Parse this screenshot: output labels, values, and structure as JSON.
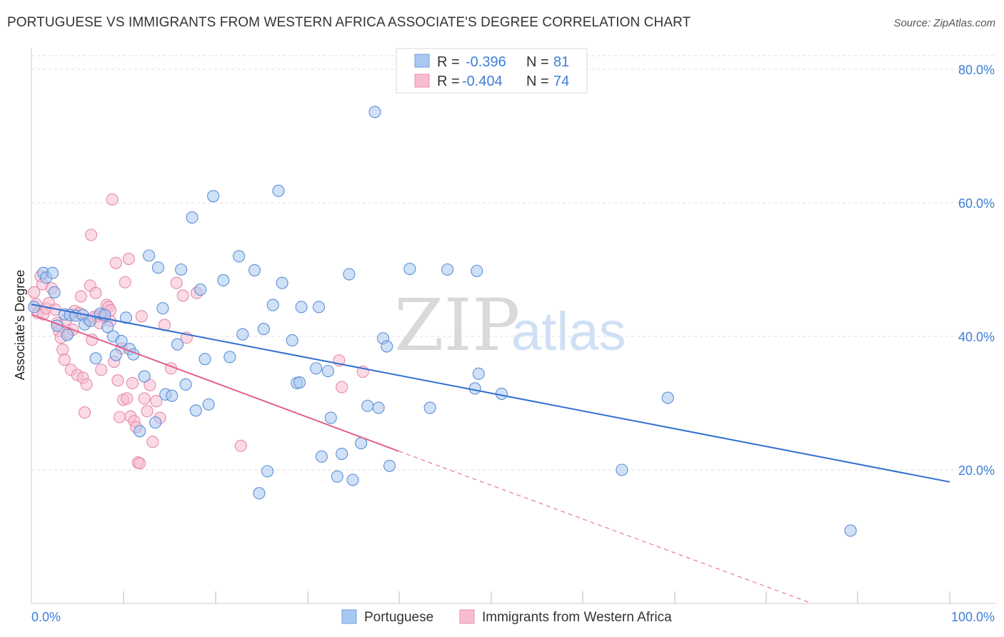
{
  "title": "PORTUGUESE VS IMMIGRANTS FROM WESTERN AFRICA ASSOCIATE'S DEGREE CORRELATION CHART",
  "source": "Source: ZipAtlas.com",
  "watermark": {
    "zip": "ZIP",
    "atlas": "atlas"
  },
  "legend": {
    "r_label": "R =",
    "n_label": "N =",
    "rows": [
      {
        "r": "-0.396",
        "n": "81",
        "fill": "#a9c8f0",
        "stroke": "#6f9fdc"
      },
      {
        "r": "-0.404",
        "n": "74",
        "fill": "#f7bcd0",
        "stroke": "#e891ad"
      }
    ]
  },
  "bottom_legend": [
    "Portuguese",
    "Immigrants from Western Africa"
  ],
  "colors": {
    "blue_fill": "#a9c8f0",
    "blue_stroke": "#5b8fd6",
    "blue_line": "#2f6fd0",
    "pink_fill": "#f7bcd0",
    "pink_stroke": "#e58aa9",
    "pink_line": "#e0608e",
    "value_text": "#3f7fd9",
    "grid": "#dddddd"
  },
  "chart_data": {
    "type": "scatter",
    "title": "PORTUGUESE VS IMMIGRANTS FROM WESTERN AFRICA ASSOCIATE'S DEGREE CORRELATION CHART",
    "xlabel": "",
    "ylabel": "Associate's Degree",
    "xlim": [
      0,
      100
    ],
    "ylim": [
      0,
      80
    ],
    "x_tick_labels": [
      "0.0%",
      "100.0%"
    ],
    "y_ticks": [
      20,
      40,
      60,
      80
    ],
    "y_tick_labels": [
      "20.0%",
      "40.0%",
      "60.0%",
      "80.0%"
    ],
    "grid": true,
    "legend_position": "top-center",
    "series": [
      {
        "name": "Portuguese",
        "r": -0.396,
        "n": 81,
        "trend": {
          "x0": 0,
          "y0": 44.8,
          "x1": 100,
          "y1": 18.2
        },
        "points": [
          [
            0.3,
            44.4
          ],
          [
            1.3,
            49.5
          ],
          [
            1.6,
            48.8
          ],
          [
            2.3,
            49.5
          ],
          [
            2.5,
            46.6
          ],
          [
            2.8,
            41.6
          ],
          [
            3.6,
            43.3
          ],
          [
            3.9,
            40.2
          ],
          [
            4.2,
            43.2
          ],
          [
            4.8,
            43.1
          ],
          [
            5.6,
            43.2
          ],
          [
            5.8,
            41.8
          ],
          [
            6.4,
            42.3
          ],
          [
            7.0,
            36.7
          ],
          [
            7.5,
            43.4
          ],
          [
            8.0,
            43.2
          ],
          [
            8.3,
            41.4
          ],
          [
            8.9,
            40.0
          ],
          [
            9.2,
            37.2
          ],
          [
            9.8,
            39.3
          ],
          [
            10.3,
            42.8
          ],
          [
            10.7,
            38.1
          ],
          [
            11.1,
            37.3
          ],
          [
            11.8,
            25.8
          ],
          [
            12.3,
            34.0
          ],
          [
            12.8,
            52.1
          ],
          [
            13.5,
            27.1
          ],
          [
            13.8,
            50.3
          ],
          [
            14.3,
            44.2
          ],
          [
            14.6,
            31.3
          ],
          [
            15.3,
            31.1
          ],
          [
            15.9,
            38.8
          ],
          [
            16.3,
            50.0
          ],
          [
            16.8,
            32.8
          ],
          [
            17.5,
            57.8
          ],
          [
            17.9,
            28.9
          ],
          [
            18.4,
            47.0
          ],
          [
            18.9,
            36.6
          ],
          [
            19.3,
            29.8
          ],
          [
            19.8,
            61.0
          ],
          [
            20.9,
            48.4
          ],
          [
            21.6,
            36.9
          ],
          [
            22.6,
            52.0
          ],
          [
            23.0,
            40.3
          ],
          [
            24.3,
            49.9
          ],
          [
            24.8,
            16.5
          ],
          [
            25.3,
            41.1
          ],
          [
            25.7,
            19.8
          ],
          [
            26.3,
            44.7
          ],
          [
            26.9,
            61.8
          ],
          [
            27.3,
            48.0
          ],
          [
            28.4,
            39.4
          ],
          [
            28.9,
            33.0
          ],
          [
            29.2,
            33.1
          ],
          [
            29.4,
            44.4
          ],
          [
            31.0,
            35.2
          ],
          [
            31.3,
            44.4
          ],
          [
            31.6,
            22.0
          ],
          [
            32.3,
            34.8
          ],
          [
            32.6,
            27.8
          ],
          [
            33.3,
            19.0
          ],
          [
            33.8,
            22.4
          ],
          [
            34.6,
            49.3
          ],
          [
            35.0,
            18.5
          ],
          [
            35.9,
            24.0
          ],
          [
            36.6,
            29.6
          ],
          [
            37.4,
            73.6
          ],
          [
            37.8,
            29.3
          ],
          [
            38.3,
            39.7
          ],
          [
            38.7,
            38.5
          ],
          [
            39.0,
            20.6
          ],
          [
            41.2,
            50.1
          ],
          [
            43.4,
            29.3
          ],
          [
            45.3,
            50.0
          ],
          [
            48.3,
            32.2
          ],
          [
            48.7,
            34.4
          ],
          [
            51.2,
            31.4
          ],
          [
            64.3,
            20.0
          ],
          [
            69.3,
            30.8
          ],
          [
            89.2,
            10.9
          ],
          [
            48.5,
            49.8
          ]
        ]
      },
      {
        "name": "Immigrants from Western Africa",
        "r": -0.404,
        "n": 74,
        "trend": {
          "x0": 0,
          "y0": 43.3,
          "x1": 40,
          "y1": 22.8,
          "dash_x1": 100,
          "dash_y1": -7.6
        },
        "points": [
          [
            0.3,
            46.6
          ],
          [
            0.5,
            44.8
          ],
          [
            0.7,
            43.5
          ],
          [
            1.0,
            49.0
          ],
          [
            1.2,
            47.8
          ],
          [
            1.3,
            43.3
          ],
          [
            1.6,
            44.2
          ],
          [
            1.9,
            45.0
          ],
          [
            2.2,
            47.2
          ],
          [
            2.6,
            44.0
          ],
          [
            2.8,
            42.0
          ],
          [
            3.0,
            40.8
          ],
          [
            3.2,
            39.8
          ],
          [
            3.4,
            38.0
          ],
          [
            3.6,
            36.5
          ],
          [
            3.8,
            42.5
          ],
          [
            4.0,
            40.5
          ],
          [
            4.3,
            35.0
          ],
          [
            4.5,
            41.0
          ],
          [
            4.7,
            43.8
          ],
          [
            5.0,
            34.2
          ],
          [
            5.2,
            43.5
          ],
          [
            5.4,
            46.0
          ],
          [
            5.6,
            33.8
          ],
          [
            5.8,
            28.6
          ],
          [
            6.0,
            32.8
          ],
          [
            6.2,
            42.5
          ],
          [
            6.4,
            47.6
          ],
          [
            6.6,
            39.5
          ],
          [
            6.8,
            42.9
          ],
          [
            7.0,
            46.5
          ],
          [
            7.2,
            43.0
          ],
          [
            7.4,
            42.0
          ],
          [
            7.6,
            35.0
          ],
          [
            7.8,
            43.3
          ],
          [
            8.0,
            42.9
          ],
          [
            8.2,
            44.7
          ],
          [
            8.4,
            44.4
          ],
          [
            8.6,
            43.9
          ],
          [
            8.8,
            60.5
          ],
          [
            9.0,
            36.2
          ],
          [
            9.2,
            51.0
          ],
          [
            9.4,
            33.4
          ],
          [
            9.6,
            27.9
          ],
          [
            9.8,
            38.2
          ],
          [
            10.0,
            30.5
          ],
          [
            10.2,
            48.1
          ],
          [
            10.4,
            30.7
          ],
          [
            10.6,
            51.6
          ],
          [
            10.8,
            28.0
          ],
          [
            11.0,
            33.0
          ],
          [
            11.2,
            27.3
          ],
          [
            11.4,
            26.4
          ],
          [
            11.6,
            21.1
          ],
          [
            11.8,
            21.0
          ],
          [
            12.0,
            43.0
          ],
          [
            12.3,
            30.7
          ],
          [
            12.6,
            28.8
          ],
          [
            12.9,
            32.7
          ],
          [
            13.2,
            24.2
          ],
          [
            13.6,
            30.3
          ],
          [
            14.0,
            27.8
          ],
          [
            14.5,
            41.7
          ],
          [
            15.2,
            35.2
          ],
          [
            15.8,
            48.0
          ],
          [
            16.5,
            46.1
          ],
          [
            16.9,
            39.8
          ],
          [
            18.0,
            46.5
          ],
          [
            22.8,
            23.6
          ],
          [
            33.5,
            36.4
          ],
          [
            36.1,
            34.7
          ],
          [
            33.8,
            32.4
          ],
          [
            6.5,
            55.2
          ],
          [
            8.6,
            42.3
          ]
        ]
      }
    ]
  }
}
